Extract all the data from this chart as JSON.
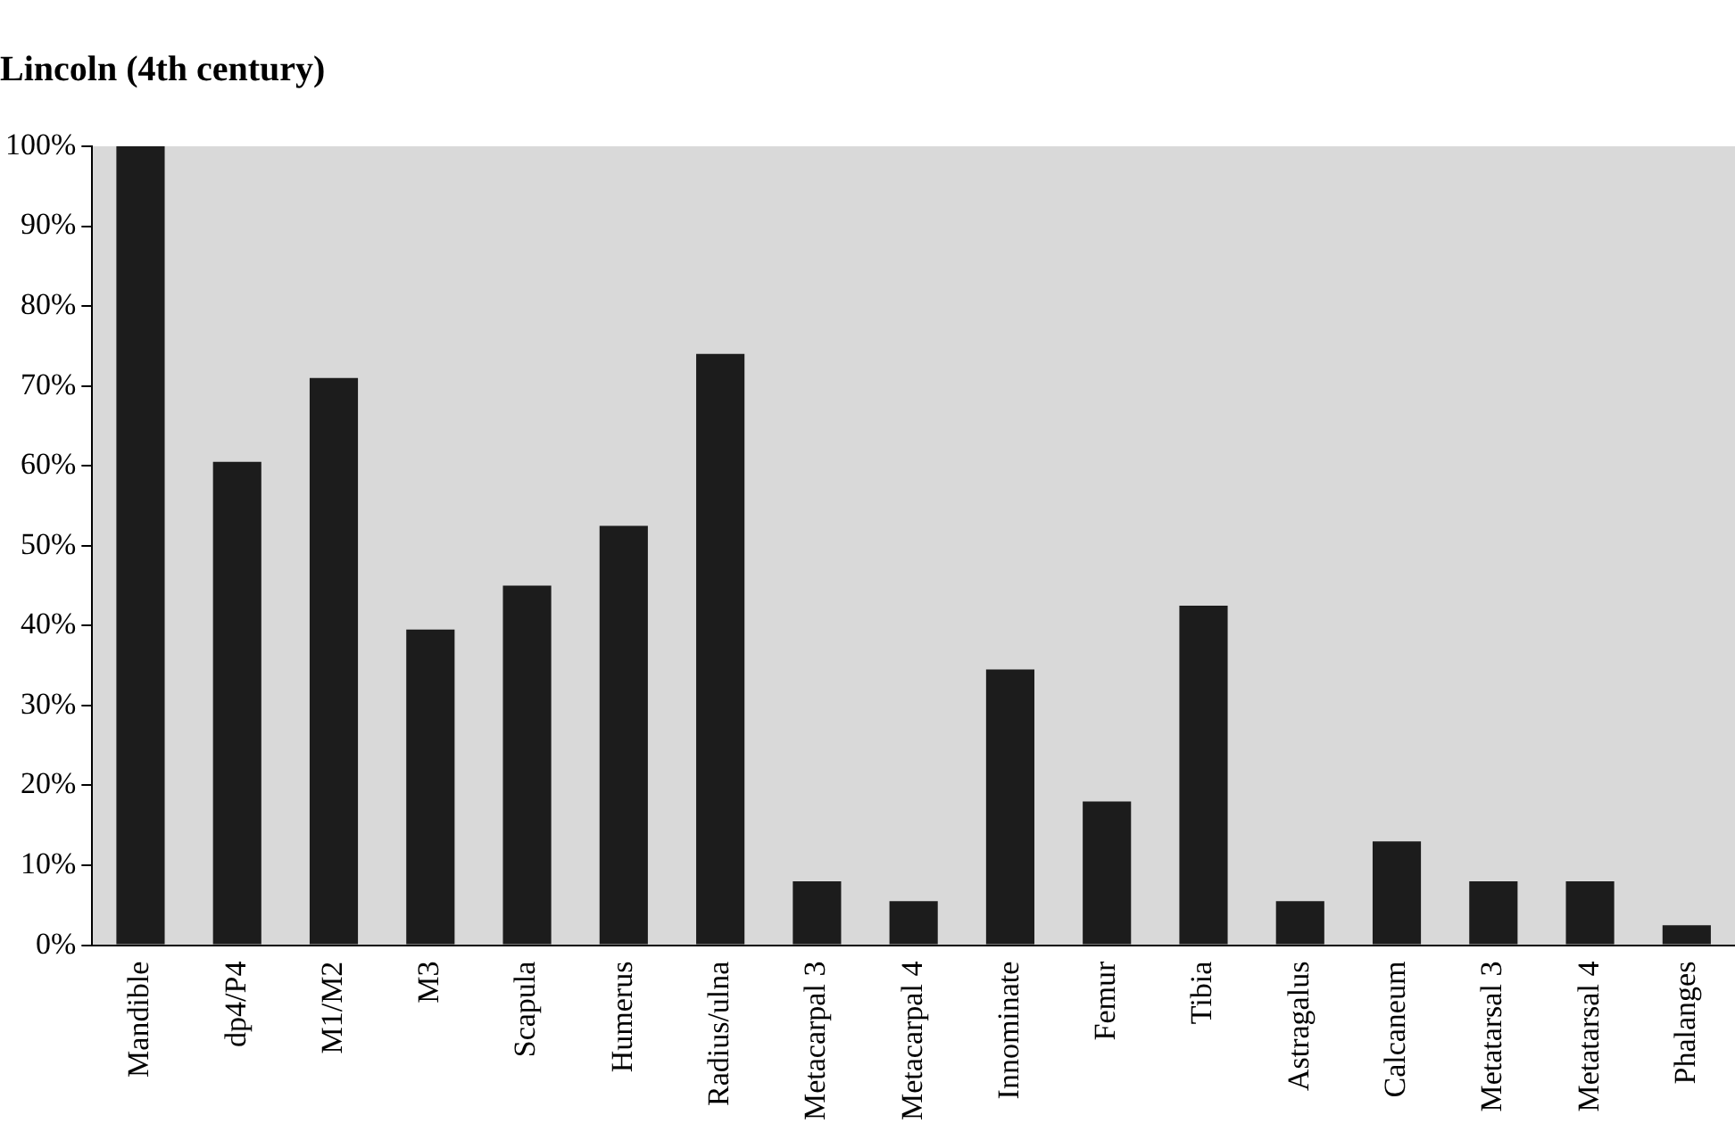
{
  "chart_data": {
    "type": "bar",
    "title": "Lincoln (4th century)",
    "categories": [
      "Mandible",
      "dp4/P4",
      "M1/M2",
      "M3",
      "Scapula",
      "Humerus",
      "Radius/ulna",
      "Metacarpal 3",
      "Metacarpal 4",
      "Innominate",
      "Femur",
      "Tibia",
      "Astragalus",
      "Calcaneum",
      "Metatarsal 3",
      "Metatarsal 4",
      "Phalanges"
    ],
    "values": [
      100,
      60.5,
      71,
      39.5,
      45,
      52.5,
      74,
      8,
      5.5,
      34.5,
      18,
      42.5,
      5.5,
      13,
      8,
      8,
      2.5
    ],
    "color": "#1c1c1c",
    "ylim": [
      0,
      100
    ],
    "yticks": [
      {
        "value": 0,
        "label": "0%"
      },
      {
        "value": 10,
        "label": "10%"
      },
      {
        "value": 20,
        "label": "20%"
      },
      {
        "value": 30,
        "label": "30%"
      },
      {
        "value": 40,
        "label": "40%"
      },
      {
        "value": 50,
        "label": "50%"
      },
      {
        "value": 60,
        "label": "60%"
      },
      {
        "value": 70,
        "label": "70%"
      },
      {
        "value": 80,
        "label": "80%"
      },
      {
        "value": 90,
        "label": "90%"
      },
      {
        "value": 100,
        "label": "100%"
      }
    ],
    "grid": false,
    "legend": false
  }
}
